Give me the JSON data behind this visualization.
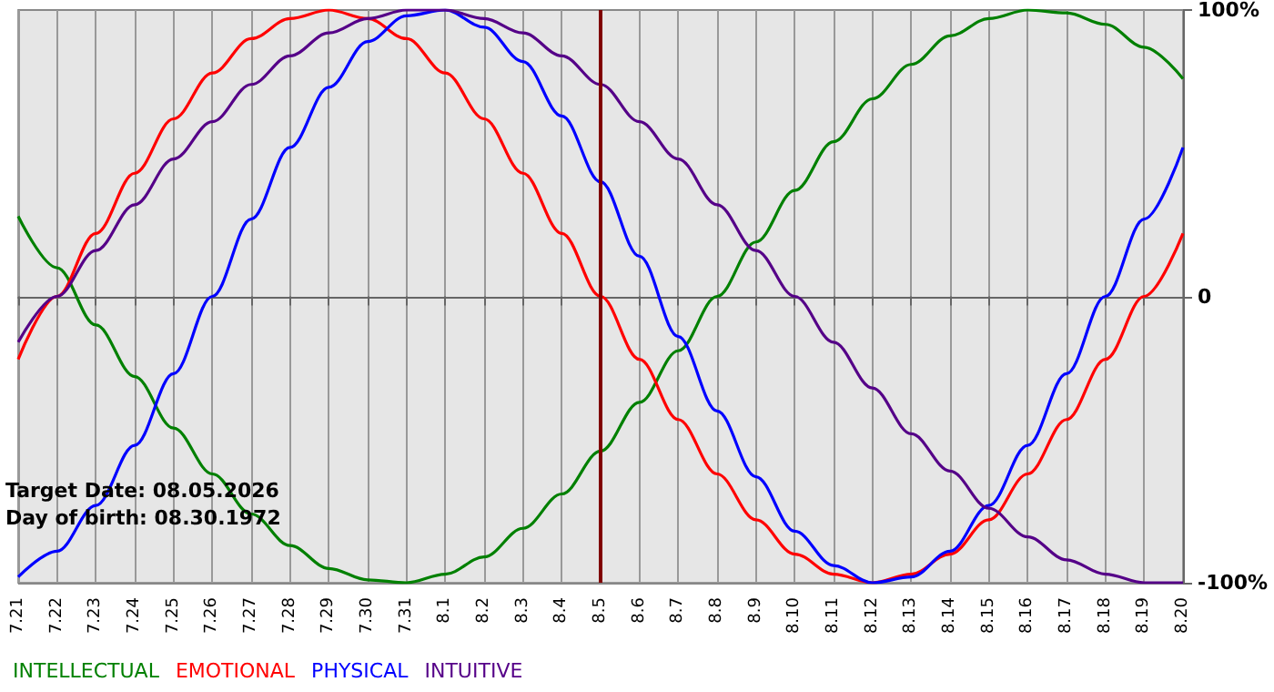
{
  "chart_data": {
    "type": "line",
    "categories": [
      "7.21",
      "7.22",
      "7.23",
      "7.24",
      "7.25",
      "7.26",
      "7.27",
      "7.28",
      "7.29",
      "7.30",
      "7.31",
      "8.1",
      "8.2",
      "8.3",
      "8.4",
      "8.5",
      "8.6",
      "8.7",
      "8.8",
      "8.9",
      "8.10",
      "8.11",
      "8.12",
      "8.13",
      "8.14",
      "8.15",
      "8.16",
      "8.17",
      "8.18",
      "8.19",
      "8.20"
    ],
    "series": [
      {
        "name": "INTELLECTUAL",
        "color": "#008000",
        "values": [
          28,
          10,
          -10,
          -28,
          -46,
          -62,
          -76,
          -87,
          -95,
          -99,
          -100,
          -97,
          -91,
          -81,
          -69,
          -54,
          -37,
          -19,
          0,
          19,
          37,
          54,
          69,
          81,
          91,
          97,
          100,
          99,
          95,
          87,
          76
        ]
      },
      {
        "name": "EMOTIONAL",
        "color": "#ff0000",
        "values": [
          -22,
          0,
          22,
          43,
          62,
          78,
          90,
          97,
          100,
          97,
          90,
          78,
          62,
          43,
          22,
          0,
          -22,
          -43,
          -62,
          -78,
          -90,
          -97,
          -100,
          -97,
          -90,
          -78,
          -62,
          -43,
          -22,
          0,
          22
        ]
      },
      {
        "name": "PHYSICAL",
        "color": "#0000ff",
        "values": [
          -98,
          -89,
          -73,
          -52,
          -27,
          0,
          27,
          52,
          73,
          89,
          98,
          100,
          94,
          82,
          63,
          40,
          14,
          -14,
          -40,
          -63,
          -82,
          -94,
          -100,
          -98,
          -89,
          -73,
          -52,
          -27,
          0,
          27,
          52
        ]
      },
      {
        "name": "INTUITIVE",
        "color": "#550088",
        "values": [
          -16,
          0,
          16,
          32,
          48,
          61,
          74,
          84,
          92,
          97,
          100,
          100,
          97,
          92,
          84,
          74,
          61,
          48,
          32,
          16,
          0,
          -16,
          -32,
          -48,
          -61,
          -74,
          -84,
          -92,
          -97,
          -100,
          -100
        ]
      }
    ],
    "ylim": [
      -100,
      100
    ],
    "yticks": [
      {
        "value": -100,
        "label": "-100%"
      },
      0,
      {
        "value": 100,
        "label": "100%"
      }
    ],
    "ref_lines": [
      {
        "axis": "x",
        "value": "8.5",
        "color": "#800000"
      }
    ],
    "annotations": [
      "Target Date: 08.05.2026",
      "Day of birth: 08.30.1972"
    ],
    "grid": true,
    "legend": "bottom left",
    "marker": "none",
    "line_style": "solid"
  }
}
